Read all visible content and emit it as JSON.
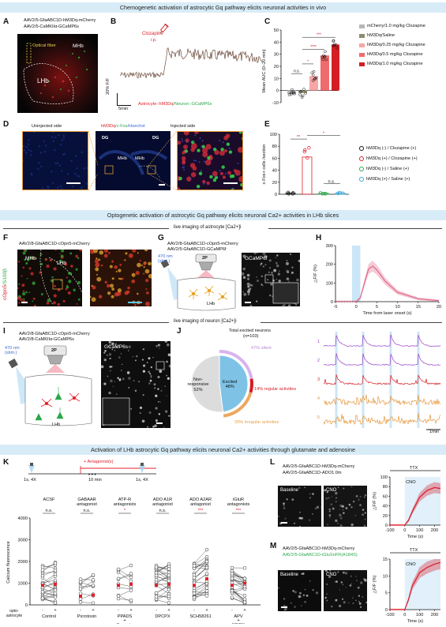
{
  "banners": {
    "b1": "Chemogenetic activation of astrocytic Gq pathway elicits neuronal activities in vivo",
    "b2": "Optogenetic activation of astrocytic Gq pathway elicits neuronal Ca2+ activities in LHb slices",
    "b3": "Activation of LHb astrocytic Gq pathway elicits neuronal Ca2+ activities through glutamate and adenosine"
  },
  "panelA": {
    "label": "A",
    "line1": "AAV2/5-GfaABC1D-hM3Dq-mCherry",
    "line2": "AAV2/5-CaMKIIα-GCaMP6s",
    "optical": "Optical fiber",
    "mhb": "MHb",
    "lhb": "LHb"
  },
  "panelB": {
    "label": "B",
    "clozapine": "Clozapine",
    "ip": "i.p.",
    "yscale": "20% F/F",
    "xscale": "5min",
    "bottom_a": "Astrocyte::hM3Dq",
    "bottom_b": "/Neuron::GCaMP6s"
  },
  "panelC": {
    "label": "C",
    "ylabel": "Mean AUC (0–20 min)",
    "yticks": [
      "50",
      "40",
      "30",
      "20",
      "10",
      "0",
      "-10"
    ],
    "sig": [
      "n.s.",
      "*",
      "****",
      "***"
    ],
    "legend": [
      {
        "text": "mCherry/1.0 mg/kg Clozapine",
        "color": "#b7b7b7"
      },
      {
        "text": "hM3Dq/Saline",
        "color": "#8d8d6f"
      },
      {
        "text": "hM3Dq/0.25 mg/kg Clozapine",
        "color": "#f7a5a5"
      },
      {
        "text": "hM3Dq/0.5 mg/kg Clozapine",
        "color": "#f06b6b"
      },
      {
        "text": "hM3Dq/1.0 mg/kg Clozapine",
        "color": "#d41e24"
      }
    ]
  },
  "panelD": {
    "label": "D",
    "uninjected": "Uninjected side",
    "injected": "Injected side",
    "title_a": "hM3Dq",
    "title_b": "/c-Fos",
    "title_c": "/Hoechst",
    "dg": "DG",
    "mhb": "MHb"
  },
  "panelE": {
    "label": "E",
    "ylabel": "c-Fos+ cells /section",
    "yticks": [
      "100",
      "80",
      "60",
      "40",
      "20",
      "0"
    ],
    "sig": [
      "**",
      "*",
      "n.s."
    ],
    "legend": [
      {
        "text": "hM3Dq (-) / Clozapine (+)",
        "color": "#111111"
      },
      {
        "text": "hM3Dq (+) / Clozapine (+)",
        "color": "#e0202a"
      },
      {
        "text": "hM3Dq (-) / Saline (+)",
        "color": "#2aa84a"
      },
      {
        "text": "hM3Dq (+) / Saline (+)",
        "color": "#3aa7d8"
      }
    ]
  },
  "sectionF": {
    "header": "live imaging of astrocyte [Ca2+]i"
  },
  "panelF": {
    "label": "F",
    "virus": "AAV2/8-GfaABC1D-cOpn5-mCherry",
    "side_a": "cOpn5",
    "side_b": "/S100β",
    "mhb": "MHb",
    "lhb": "LHb"
  },
  "panelG": {
    "label": "G",
    "line1": "AAV2/8-GfaABC1D-cOpn5-mCherry",
    "line2": "AAV2/5-GfaABC1D-GCaMP6f",
    "stim": "470 nm (stim.)",
    "tp": "2P",
    "lhb": "LHb",
    "img": "GCaMP6f"
  },
  "panelH": {
    "label": "H",
    "ylabel": "△F/F (%)",
    "xlabel": "Time from laser onset (s)",
    "xticks": [
      "-5",
      "0",
      "5",
      "10",
      "15",
      "20"
    ],
    "yticks": [
      "300",
      "200",
      "100",
      "0"
    ]
  },
  "sectionI": {
    "header": "live imaging of neuron [Ca2+]i"
  },
  "panelI": {
    "label": "I",
    "line1": "AAV2/8-GfaABC1D-cOpn5-mCherry",
    "line2": "AAV2/8-CaMKIIα-GCaMP6s",
    "stim": "470 nm (stim.)",
    "tp": "2P",
    "lhb": "LHb",
    "img": "GCaMP6s"
  },
  "panelJ": {
    "label": "J",
    "total": "Total excited neurons",
    "n": "(n=103)",
    "nonresp": "Non-responsive",
    "nonresp_pct": "52%",
    "excited": "Excited",
    "excited_pct": "48%",
    "silent": "47% silent",
    "regular": "14% regular activities",
    "irregular": "39% irregular activities",
    "trace_ids": [
      "1",
      "2",
      "3",
      "4",
      "5"
    ],
    "xscale": "1min"
  },
  "panelK": {
    "label": "K",
    "t1": "1s, 4X",
    "t2": "10 min",
    "t3": "1s, 4X",
    "antag": "+ Antagonist(s)",
    "ylabel": "Calcium fluorescence",
    "yticks": [
      "4000",
      "3000",
      "2000",
      "1000",
      "0"
    ],
    "groups": [
      {
        "t1": "ACSF",
        "t2": "",
        "sig": "n.s.",
        "x": "Control"
      },
      {
        "t1": "GABAAR",
        "t2": "antagonist",
        "sig": "n.s.",
        "x": "Picrotoxin"
      },
      {
        "t1": "ATP-R",
        "t2": "antagonists",
        "sig": "*",
        "x": "PPADS"
      },
      {
        "t1": "ADO A1R",
        "t2": "antagonist",
        "sig": "n.s.",
        "x": "DPCPX"
      },
      {
        "t1": "ADO A2AR",
        "t2": "antagonist",
        "sig": "***",
        "x": "SCH58261"
      },
      {
        "t1": "iGluR",
        "t2": "antagonists",
        "sig": "***",
        "x": "APV"
      }
    ],
    "extra1": "+",
    "extra2": "Suramin",
    "extra3": "+",
    "extra4": "NBQX",
    "opto_a": "opto-",
    "opto_b": "astrocyte",
    "minus": "-",
    "plus": "+"
  },
  "panelL": {
    "label": "L",
    "line1": "AAV2/5-GfaABC1D-hM3Dq-mCherry",
    "line2": "AAV2/5-GfaABC1D-ADO1.0m",
    "baseline": "Baseline",
    "cno": "CNO",
    "ttx": "TTX",
    "ylabel": "△F/F (%)",
    "xlabel": "Time (s)",
    "xticks": [
      "-100",
      "0",
      "100",
      "200"
    ],
    "yticks": [
      "100",
      "80",
      "60",
      "40",
      "20",
      "0"
    ]
  },
  "panelM": {
    "label": "M",
    "line1": "AAV2/5-GfaABC1D-hM3Dq-mCherry",
    "line2": "AAV2/5-GfaABC1D-iGluSnFR(A184S)",
    "baseline": "Baseline",
    "cno": "CNO",
    "ttx": "TTX",
    "ylabel": "△F/F (%)",
    "xlabel": "Time (s)",
    "xticks": [
      "-100",
      "0",
      "100",
      "200"
    ],
    "yticks": [
      "15",
      "10",
      "5",
      "0"
    ]
  },
  "chart_data": [
    {
      "type": "bar",
      "panel": "C",
      "categories": [
        "mCherry/1.0 mg/kg Clozapine",
        "hM3Dq/Saline",
        "hM3Dq/0.25 mg/kg Clozapine",
        "hM3Dq/0.5 mg/kg Clozapine",
        "hM3Dq/1.0 mg/kg Clozapine"
      ],
      "values": [
        -3,
        -2,
        12,
        29,
        38
      ],
      "ylabel": "Mean AUC (0–20 min)",
      "ylim": [
        -10,
        50
      ]
    },
    {
      "type": "bar",
      "panel": "E",
      "categories": [
        "hM3Dq (-) / Clozapine (+)",
        "hM3Dq (+) / Clozapine (+)",
        "hM3Dq (-) / Saline (+)",
        "hM3Dq (+) / Saline (+)"
      ],
      "values": [
        2,
        62,
        2,
        2
      ],
      "ylabel": "c-Fos+ cells /section",
      "ylim": [
        0,
        100
      ]
    },
    {
      "type": "line",
      "panel": "H",
      "x": [
        -5,
        -1,
        0,
        1,
        2,
        3,
        4,
        5,
        7,
        10,
        15,
        20
      ],
      "series": [
        {
          "values": [
            0,
            0,
            0,
            20,
            100,
            175,
            190,
            170,
            110,
            50,
            15,
            5
          ]
        }
      ],
      "xlabel": "Time from laser onset (s)",
      "ylabel": "△F/F (%)",
      "ylim": [
        0,
        300
      ]
    },
    {
      "type": "pie",
      "panel": "J",
      "categories": [
        "Non-responsive",
        "Excited"
      ],
      "values": [
        52,
        48
      ]
    },
    {
      "type": "line",
      "panel": "L",
      "x": [
        -100,
        -50,
        0,
        25,
        50,
        100,
        150,
        200,
        240
      ],
      "series": [
        {
          "values": [
            0,
            0,
            0,
            10,
            28,
            58,
            72,
            78,
            76
          ]
        }
      ],
      "xlabel": "Time (s)",
      "ylabel": "△F/F (%)",
      "ylim": [
        0,
        100
      ]
    },
    {
      "type": "line",
      "panel": "M",
      "x": [
        -100,
        -50,
        0,
        25,
        50,
        100,
        150,
        200,
        240
      ],
      "series": [
        {
          "values": [
            0,
            0,
            0,
            3,
            7,
            11,
            12.5,
            13.5,
            14
          ]
        }
      ],
      "xlabel": "Time (s)",
      "ylabel": "△F/F (%)",
      "ylim": [
        0,
        15
      ]
    }
  ]
}
